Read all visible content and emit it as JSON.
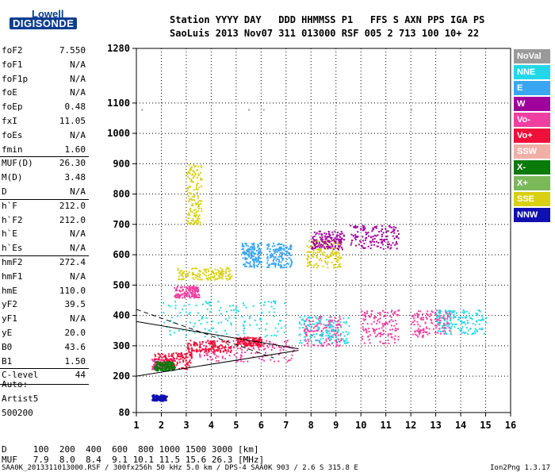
{
  "logo": {
    "top": "Lowell",
    "bottom": "DIGISONDE"
  },
  "header": {
    "line1": "Station YYYY DAY   DDD HHMMSS P1   FFS S AXN PPS IGA PS",
    "line2": "SaoLuis 2013 Nov07 311 013000 RSF 005 2 713 100 10+ 22"
  },
  "parameters": [
    {
      "name": "foF2",
      "value": "7.550"
    },
    {
      "name": "foF1",
      "value": "N/A"
    },
    {
      "name": "foF1p",
      "value": "N/A"
    },
    {
      "name": "foE",
      "value": "N/A"
    },
    {
      "name": "foEp",
      "value": "0.48"
    },
    {
      "name": "fxI",
      "value": "11.05"
    },
    {
      "name": "foEs",
      "value": "N/A"
    },
    {
      "name": "fmin",
      "value": "1.60"
    },
    {
      "name": "MUF(D)",
      "value": "26.30"
    },
    {
      "name": "M(D)",
      "value": "3.48"
    },
    {
      "name": "D",
      "value": "N/A"
    },
    {
      "name": "h`F",
      "value": "212.0"
    },
    {
      "name": "h`F2",
      "value": "212.0"
    },
    {
      "name": "h`E",
      "value": "N/A"
    },
    {
      "name": "h`Es",
      "value": "N/A"
    },
    {
      "name": "hmF2",
      "value": "272.4"
    },
    {
      "name": "hmF1",
      "value": "N/A"
    },
    {
      "name": "hmE",
      "value": "110.0"
    },
    {
      "name": "yF2",
      "value": "39.5"
    },
    {
      "name": "yF1",
      "value": "N/A"
    },
    {
      "name": "yE",
      "value": "20.0"
    },
    {
      "name": "B0",
      "value": "43.6"
    },
    {
      "name": "B1",
      "value": "1.50"
    },
    {
      "name": "C-level",
      "value": "44"
    }
  ],
  "auto": {
    "label": "Auto:",
    "artist": "Artist5",
    "code": "500200"
  },
  "legend": [
    {
      "label": "NoVal",
      "color": "#9a9a9a"
    },
    {
      "label": "NNE",
      "color": "#22d8e8"
    },
    {
      "label": "E",
      "color": "#3aa6f0"
    },
    {
      "label": "W",
      "color": "#a0009a"
    },
    {
      "label": "Vo-",
      "color": "#f03fa0"
    },
    {
      "label": "Vo+",
      "color": "#f0103a"
    },
    {
      "label": "SSW",
      "color": "#f0b0a8"
    },
    {
      "label": "X-",
      "color": "#0a7a0a"
    },
    {
      "label": "X+",
      "color": "#7ab85a"
    },
    {
      "label": "SSE",
      "color": "#d8d010"
    },
    {
      "label": "NNW",
      "color": "#1010b0"
    }
  ],
  "footer": {
    "d_row": "D     100  200  400  600  800 1000 1500 3000 [km]",
    "muf_row": "MUF   7.9  8.0  8.4  9.1 10.1 11.5 15.6 26.3 [MHz]",
    "caption": "SAA0K_2013311013000.RSF / 300fx256h 50 kHz 5.0 km / DPS-4 SAA0K 903 / 2.6 S 315.8 E",
    "version": "Ion2Png 1.3.17"
  },
  "chart_data": {
    "type": "scatter",
    "xlim": [
      1,
      16
    ],
    "ylim": [
      80,
      1280
    ],
    "x_ticks": [
      "1",
      "2",
      "3",
      "4",
      "5",
      "6",
      "7",
      "8",
      "9",
      "10",
      "11",
      "12",
      "13",
      "14",
      "15",
      "16"
    ],
    "y_ticks": [
      "80",
      "200",
      "300",
      "400",
      "500",
      "600",
      "700",
      "800",
      "900",
      "1000",
      "1100",
      "1280"
    ],
    "grid": true,
    "series": [
      {
        "name": "NoVal",
        "traces": [
          {
            "x": [
              1.2,
              16
            ],
            "y": [
              1080,
              1080
            ]
          }
        ]
      },
      {
        "name": "Vo-",
        "traces": [
          {
            "x": [
              1.6,
              2.5
            ],
            "y": [
              225,
              260
            ]
          },
          {
            "x": [
              2.5,
              3.5
            ],
            "y": [
              460,
              500
            ]
          },
          {
            "x": [
              3.5,
              7.3
            ],
            "y": [
              250,
              320
            ]
          },
          {
            "x": [
              7.7,
              9.2
            ],
            "y": [
              300,
              400
            ]
          },
          {
            "x": [
              10,
              11.5
            ],
            "y": [
              310,
              420
            ]
          },
          {
            "x": [
              12,
              13.6
            ],
            "y": [
              330,
              420
            ]
          }
        ]
      },
      {
        "name": "Vo+",
        "traces": [
          {
            "x": [
              1.7,
              3.2
            ],
            "y": [
              225,
              280
            ]
          },
          {
            "x": [
              3,
              4.8
            ],
            "y": [
              280,
              320
            ]
          },
          {
            "x": [
              5,
              6
            ],
            "y": [
              300,
              330
            ]
          }
        ]
      },
      {
        "name": "SSE",
        "traces": [
          {
            "x": [
              2.6,
              4.8
            ],
            "y": [
              520,
              560
            ]
          },
          {
            "x": [
              3,
              3.6
            ],
            "y": [
              700,
              900
            ]
          },
          {
            "x": [
              7.8,
              9.2
            ],
            "y": [
              560,
              650
            ]
          }
        ]
      },
      {
        "name": "NNE",
        "traces": [
          {
            "x": [
              2,
              7
            ],
            "y": [
              330,
              450
            ]
          },
          {
            "x": [
              7.5,
              9.5
            ],
            "y": [
              310,
              400
            ]
          },
          {
            "x": [
              13,
              15
            ],
            "y": [
              340,
              420
            ]
          }
        ]
      },
      {
        "name": "E",
        "traces": [
          {
            "x": [
              5.2,
              6
            ],
            "y": [
              560,
              640
            ]
          },
          {
            "x": [
              6.2,
              7.2
            ],
            "y": [
              560,
              640
            ]
          }
        ]
      },
      {
        "name": "W",
        "traces": [
          {
            "x": [
              8,
              9.3
            ],
            "y": [
              620,
              680
            ]
          },
          {
            "x": [
              9.5,
              11.5
            ],
            "y": [
              620,
              700
            ]
          }
        ]
      },
      {
        "name": "X-",
        "traces": [
          {
            "x": [
              1.7,
              2.5
            ],
            "y": [
              220,
              250
            ]
          }
        ]
      },
      {
        "name": "NNW",
        "traces": [
          {
            "x": [
              1.6,
              2.2
            ],
            "y": [
              120,
              140
            ]
          }
        ]
      }
    ],
    "lines": [
      {
        "x": [
          1,
          7.5
        ],
        "y": [
          200,
          285
        ]
      },
      {
        "x": [
          1,
          6.5
        ],
        "y": [
          420,
          260
        ]
      },
      {
        "x": [
          1,
          7.5
        ],
        "y": [
          380,
          290
        ]
      }
    ]
  }
}
